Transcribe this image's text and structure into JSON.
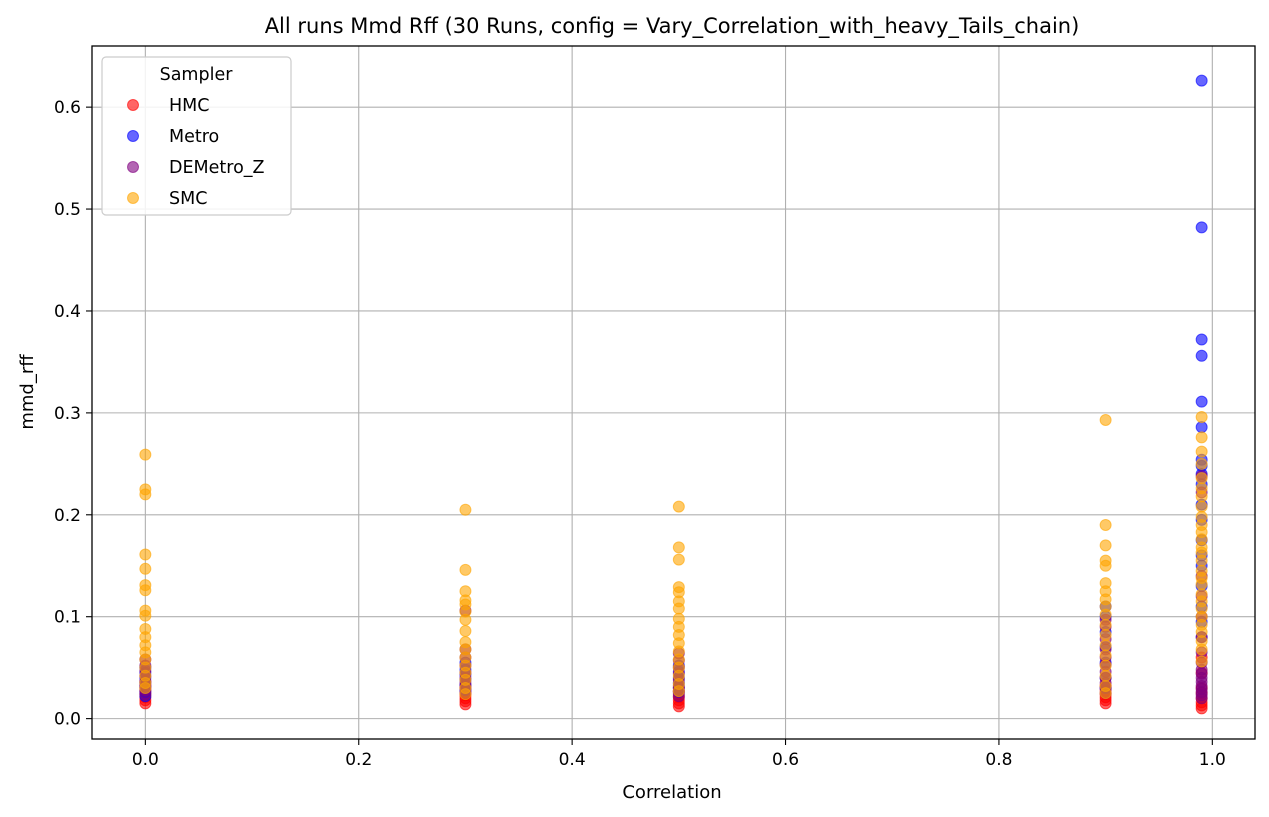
{
  "chart_data": {
    "type": "scatter",
    "title": "All runs Mmd Rff (30 Runs, config = Vary_Correlation_with_heavy_Tails_chain)",
    "xlabel": "Correlation",
    "ylabel": "mmd_rff",
    "xlim": [
      -0.05,
      1.04
    ],
    "ylim": [
      -0.02,
      0.66
    ],
    "xticks": [
      "0.0",
      "0.2",
      "0.4",
      "0.6",
      "0.8",
      "1.0"
    ],
    "yticks": [
      "0.0",
      "0.1",
      "0.2",
      "0.3",
      "0.4",
      "0.5",
      "0.6"
    ],
    "grid": true,
    "legend": {
      "title": "Sampler",
      "placement": "top-left",
      "entries": [
        "HMC",
        "Metro",
        "DEMetro_Z",
        "SMC"
      ]
    },
    "series": [
      {
        "name": "HMC",
        "color": "#ff0000",
        "points": [
          [
            0.0,
            0.015
          ],
          [
            0.0,
            0.018
          ],
          [
            0.0,
            0.021
          ],
          [
            0.0,
            0.024
          ],
          [
            0.0,
            0.027
          ],
          [
            0.0,
            0.03
          ],
          [
            0.0,
            0.033
          ],
          [
            0.0,
            0.036
          ],
          [
            0.3,
            0.014
          ],
          [
            0.3,
            0.017
          ],
          [
            0.3,
            0.02
          ],
          [
            0.3,
            0.023
          ],
          [
            0.3,
            0.026
          ],
          [
            0.3,
            0.029
          ],
          [
            0.3,
            0.032
          ],
          [
            0.5,
            0.012
          ],
          [
            0.5,
            0.015
          ],
          [
            0.5,
            0.018
          ],
          [
            0.5,
            0.021
          ],
          [
            0.5,
            0.024
          ],
          [
            0.5,
            0.027
          ],
          [
            0.5,
            0.03
          ],
          [
            0.9,
            0.015
          ],
          [
            0.9,
            0.018
          ],
          [
            0.9,
            0.021
          ],
          [
            0.9,
            0.024
          ],
          [
            0.9,
            0.028
          ],
          [
            0.9,
            0.032
          ],
          [
            0.99,
            0.01
          ],
          [
            0.99,
            0.013
          ],
          [
            0.99,
            0.016
          ],
          [
            0.99,
            0.02
          ],
          [
            0.99,
            0.025
          ],
          [
            0.99,
            0.03
          ],
          [
            0.99,
            0.045
          ],
          [
            0.99,
            0.06
          ]
        ]
      },
      {
        "name": "Metro",
        "color": "#0000ff",
        "points": [
          [
            0.0,
            0.022
          ],
          [
            0.0,
            0.026
          ],
          [
            0.0,
            0.031
          ],
          [
            0.0,
            0.035
          ],
          [
            0.0,
            0.04
          ],
          [
            0.0,
            0.045
          ],
          [
            0.0,
            0.05
          ],
          [
            0.3,
            0.028
          ],
          [
            0.3,
            0.033
          ],
          [
            0.3,
            0.038
          ],
          [
            0.3,
            0.043
          ],
          [
            0.3,
            0.048
          ],
          [
            0.3,
            0.055
          ],
          [
            0.5,
            0.026
          ],
          [
            0.5,
            0.03
          ],
          [
            0.5,
            0.035
          ],
          [
            0.5,
            0.04
          ],
          [
            0.5,
            0.046
          ],
          [
            0.5,
            0.052
          ],
          [
            0.9,
            0.03
          ],
          [
            0.9,
            0.04
          ],
          [
            0.9,
            0.055
          ],
          [
            0.9,
            0.07
          ],
          [
            0.9,
            0.085
          ],
          [
            0.9,
            0.1
          ],
          [
            0.9,
            0.11
          ],
          [
            0.99,
            0.626
          ],
          [
            0.99,
            0.482
          ],
          [
            0.99,
            0.372
          ],
          [
            0.99,
            0.356
          ],
          [
            0.99,
            0.311
          ],
          [
            0.99,
            0.286
          ],
          [
            0.99,
            0.254
          ],
          [
            0.99,
            0.248
          ],
          [
            0.99,
            0.24
          ],
          [
            0.99,
            0.23
          ],
          [
            0.99,
            0.21
          ],
          [
            0.99,
            0.195
          ],
          [
            0.99,
            0.175
          ],
          [
            0.99,
            0.16
          ],
          [
            0.99,
            0.15
          ],
          [
            0.99,
            0.13
          ],
          [
            0.99,
            0.11
          ],
          [
            0.99,
            0.095
          ],
          [
            0.99,
            0.08
          ]
        ]
      },
      {
        "name": "DEMetro_Z",
        "color": "#800080",
        "points": [
          [
            0.0,
            0.024
          ],
          [
            0.0,
            0.028
          ],
          [
            0.0,
            0.032
          ],
          [
            0.0,
            0.037
          ],
          [
            0.0,
            0.042
          ],
          [
            0.0,
            0.047
          ],
          [
            0.0,
            0.052
          ],
          [
            0.0,
            0.058
          ],
          [
            0.3,
            0.025
          ],
          [
            0.3,
            0.03
          ],
          [
            0.3,
            0.035
          ],
          [
            0.3,
            0.04
          ],
          [
            0.3,
            0.045
          ],
          [
            0.3,
            0.052
          ],
          [
            0.3,
            0.06
          ],
          [
            0.3,
            0.068
          ],
          [
            0.3,
            0.106
          ],
          [
            0.5,
            0.022
          ],
          [
            0.5,
            0.027
          ],
          [
            0.5,
            0.032
          ],
          [
            0.5,
            0.038
          ],
          [
            0.5,
            0.044
          ],
          [
            0.5,
            0.05
          ],
          [
            0.5,
            0.057
          ],
          [
            0.5,
            0.064
          ],
          [
            0.9,
            0.025
          ],
          [
            0.9,
            0.03
          ],
          [
            0.9,
            0.035
          ],
          [
            0.9,
            0.04
          ],
          [
            0.9,
            0.046
          ],
          [
            0.9,
            0.053
          ],
          [
            0.9,
            0.06
          ],
          [
            0.9,
            0.068
          ],
          [
            0.9,
            0.078
          ],
          [
            0.9,
            0.09
          ],
          [
            0.9,
            0.097
          ],
          [
            0.99,
            0.02
          ],
          [
            0.99,
            0.023
          ],
          [
            0.99,
            0.026
          ],
          [
            0.99,
            0.029
          ],
          [
            0.99,
            0.032
          ],
          [
            0.99,
            0.036
          ],
          [
            0.99,
            0.04
          ],
          [
            0.99,
            0.044
          ],
          [
            0.99,
            0.048
          ],
          [
            0.99,
            0.055
          ],
          [
            0.99,
            0.065
          ],
          [
            0.99,
            0.08
          ],
          [
            0.99,
            0.1
          ],
          [
            0.99,
            0.12
          ],
          [
            0.99,
            0.14
          ],
          [
            0.99,
            0.222
          ],
          [
            0.99,
            0.238
          ]
        ]
      },
      {
        "name": "SMC",
        "color": "#ffa500",
        "points": [
          [
            0.0,
            0.259
          ],
          [
            0.0,
            0.225
          ],
          [
            0.0,
            0.22
          ],
          [
            0.0,
            0.161
          ],
          [
            0.0,
            0.147
          ],
          [
            0.0,
            0.131
          ],
          [
            0.0,
            0.126
          ],
          [
            0.0,
            0.106
          ],
          [
            0.0,
            0.101
          ],
          [
            0.0,
            0.088
          ],
          [
            0.0,
            0.08
          ],
          [
            0.0,
            0.072
          ],
          [
            0.0,
            0.065
          ],
          [
            0.0,
            0.058
          ],
          [
            0.0,
            0.05
          ],
          [
            0.0,
            0.042
          ],
          [
            0.0,
            0.035
          ],
          [
            0.0,
            0.03
          ],
          [
            0.3,
            0.205
          ],
          [
            0.3,
            0.146
          ],
          [
            0.3,
            0.125
          ],
          [
            0.3,
            0.116
          ],
          [
            0.3,
            0.112
          ],
          [
            0.3,
            0.105
          ],
          [
            0.3,
            0.097
          ],
          [
            0.3,
            0.086
          ],
          [
            0.3,
            0.075
          ],
          [
            0.3,
            0.068
          ],
          [
            0.3,
            0.06
          ],
          [
            0.3,
            0.052
          ],
          [
            0.3,
            0.045
          ],
          [
            0.3,
            0.038
          ],
          [
            0.3,
            0.03
          ],
          [
            0.3,
            0.024
          ],
          [
            0.5,
            0.208
          ],
          [
            0.5,
            0.168
          ],
          [
            0.5,
            0.156
          ],
          [
            0.5,
            0.129
          ],
          [
            0.5,
            0.124
          ],
          [
            0.5,
            0.115
          ],
          [
            0.5,
            0.108
          ],
          [
            0.5,
            0.098
          ],
          [
            0.5,
            0.09
          ],
          [
            0.5,
            0.082
          ],
          [
            0.5,
            0.074
          ],
          [
            0.5,
            0.066
          ],
          [
            0.5,
            0.058
          ],
          [
            0.5,
            0.05
          ],
          [
            0.5,
            0.042
          ],
          [
            0.5,
            0.034
          ],
          [
            0.5,
            0.027
          ],
          [
            0.9,
            0.293
          ],
          [
            0.9,
            0.19
          ],
          [
            0.9,
            0.17
          ],
          [
            0.9,
            0.155
          ],
          [
            0.9,
            0.15
          ],
          [
            0.9,
            0.133
          ],
          [
            0.9,
            0.125
          ],
          [
            0.9,
            0.117
          ],
          [
            0.9,
            0.11
          ],
          [
            0.9,
            0.102
          ],
          [
            0.9,
            0.092
          ],
          [
            0.9,
            0.082
          ],
          [
            0.9,
            0.072
          ],
          [
            0.9,
            0.062
          ],
          [
            0.9,
            0.052
          ],
          [
            0.9,
            0.042
          ],
          [
            0.9,
            0.032
          ],
          [
            0.9,
            0.025
          ],
          [
            0.99,
            0.296
          ],
          [
            0.99,
            0.276
          ],
          [
            0.99,
            0.262
          ],
          [
            0.99,
            0.25
          ],
          [
            0.99,
            0.236
          ],
          [
            0.99,
            0.226
          ],
          [
            0.99,
            0.218
          ],
          [
            0.99,
            0.208
          ],
          [
            0.99,
            0.198
          ],
          [
            0.99,
            0.19
          ],
          [
            0.99,
            0.183
          ],
          [
            0.99,
            0.176
          ],
          [
            0.99,
            0.168
          ],
          [
            0.99,
            0.163
          ],
          [
            0.99,
            0.155
          ],
          [
            0.99,
            0.145
          ],
          [
            0.99,
            0.138
          ],
          [
            0.99,
            0.132
          ],
          [
            0.99,
            0.122
          ],
          [
            0.99,
            0.115
          ],
          [
            0.99,
            0.108
          ],
          [
            0.99,
            0.1
          ],
          [
            0.99,
            0.092
          ],
          [
            0.99,
            0.085
          ],
          [
            0.99,
            0.076
          ],
          [
            0.99,
            0.068
          ],
          [
            0.99,
            0.056
          ]
        ]
      }
    ]
  }
}
